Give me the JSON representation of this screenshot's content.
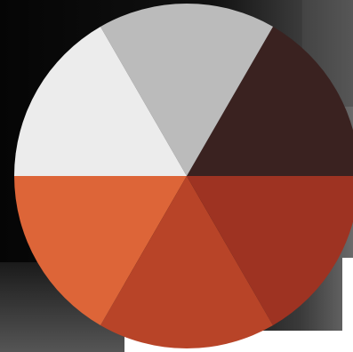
{
  "palette": {
    "colors": [
      "#dd6538",
      "#b84428",
      "#9e3322",
      "#3a2220",
      "#bbbbbb",
      "#ececec"
    ]
  }
}
